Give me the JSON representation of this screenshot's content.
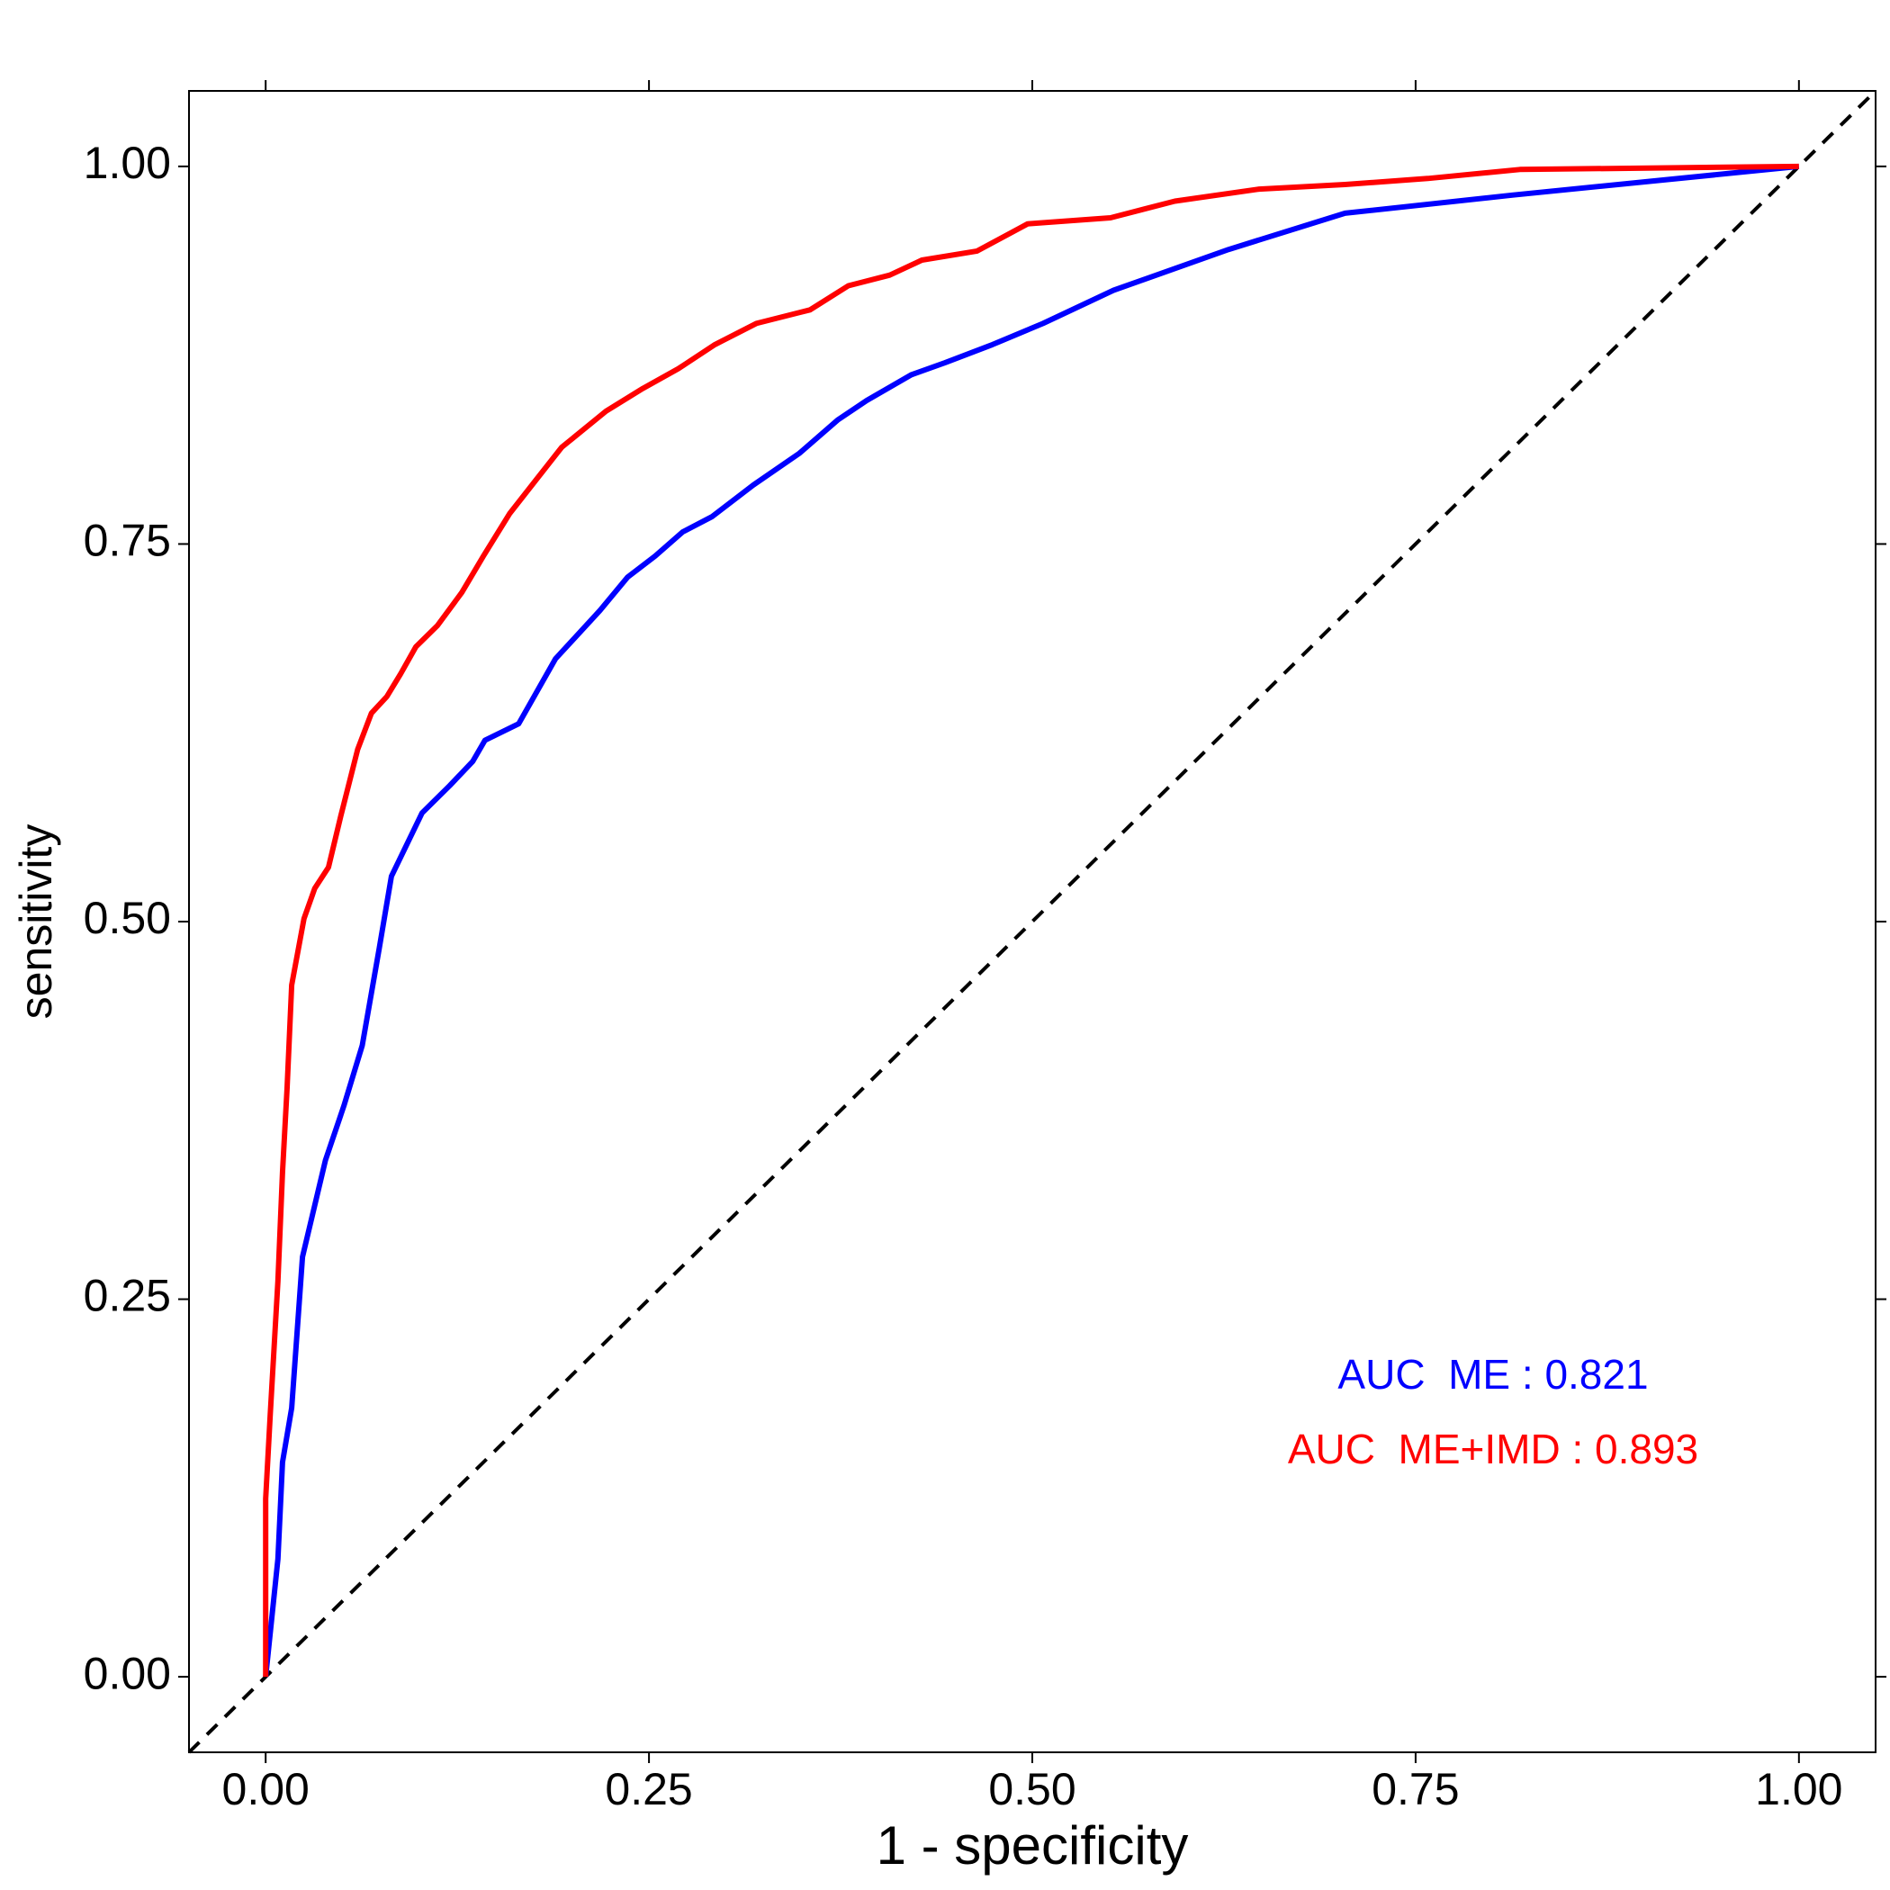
{
  "chart_data": {
    "type": "line",
    "xlabel": "1 - specificity",
    "ylabel": "sensitivity",
    "xlim": [
      -0.05,
      1.05
    ],
    "ylim": [
      -0.05,
      1.05
    ],
    "xticks": [
      {
        "value": 0,
        "label": "0.00"
      },
      {
        "value": 0.25,
        "label": "0.25"
      },
      {
        "value": 0.5,
        "label": "0.50"
      },
      {
        "value": 0.75,
        "label": "0.75"
      },
      {
        "value": 1,
        "label": "1.00"
      }
    ],
    "yticks": [
      {
        "value": 0,
        "label": "0.00"
      },
      {
        "value": 0.25,
        "label": "0.25"
      },
      {
        "value": 0.5,
        "label": "0.50"
      },
      {
        "value": 0.75,
        "label": "0.75"
      },
      {
        "value": 1,
        "label": "1.00"
      }
    ],
    "grid": false,
    "series": [
      {
        "color": "#0000ff",
        "x": [
          0,
          0.008,
          0.011,
          0.017,
          0.024,
          0.039,
          0.051,
          0.063,
          0.074,
          0.082,
          0.102,
          0.12,
          0.135,
          0.143,
          0.165,
          0.189,
          0.218,
          0.236,
          0.254,
          0.272,
          0.291,
          0.318,
          0.348,
          0.373,
          0.392,
          0.421,
          0.443,
          0.474,
          0.507,
          0.553,
          0.628,
          0.704,
          0.813,
          1
        ],
        "values": [
          0,
          0.078,
          0.142,
          0.178,
          0.278,
          0.342,
          0.378,
          0.418,
          0.482,
          0.53,
          0.572,
          0.59,
          0.606,
          0.62,
          0.631,
          0.674,
          0.706,
          0.728,
          0.742,
          0.758,
          0.768,
          0.789,
          0.81,
          0.832,
          0.845,
          0.862,
          0.87,
          0.882,
          0.896,
          0.918,
          0.945,
          0.969,
          0.981,
          1
        ]
      },
      {
        "color": "#ff0000",
        "x": [
          0,
          0,
          0.003,
          0.008,
          0.011,
          0.014,
          0.017,
          0.025,
          0.032,
          0.041,
          0.049,
          0.06,
          0.069,
          0.079,
          0.088,
          0.098,
          0.112,
          0.128,
          0.142,
          0.159,
          0.176,
          0.193,
          0.222,
          0.246,
          0.269,
          0.293,
          0.32,
          0.355,
          0.38,
          0.407,
          0.428,
          0.464,
          0.497,
          0.551,
          0.593,
          0.648,
          0.704,
          0.758,
          0.818,
          1
        ],
        "values": [
          0,
          0.118,
          0.174,
          0.262,
          0.334,
          0.39,
          0.458,
          0.502,
          0.522,
          0.536,
          0.57,
          0.614,
          0.638,
          0.649,
          0.664,
          0.682,
          0.696,
          0.718,
          0.742,
          0.77,
          0.792,
          0.814,
          0.838,
          0.853,
          0.866,
          0.882,
          0.896,
          0.905,
          0.921,
          0.928,
          0.938,
          0.944,
          0.962,
          0.966,
          0.977,
          0.985,
          0.988,
          0.992,
          0.998,
          1
        ]
      }
    ],
    "annotations": [
      {
        "text": "AUC  ME : 0.821",
        "color": "#0000ff"
      },
      {
        "text": "AUC  ME+IMD : 0.893",
        "color": "#ff0000"
      }
    ]
  }
}
